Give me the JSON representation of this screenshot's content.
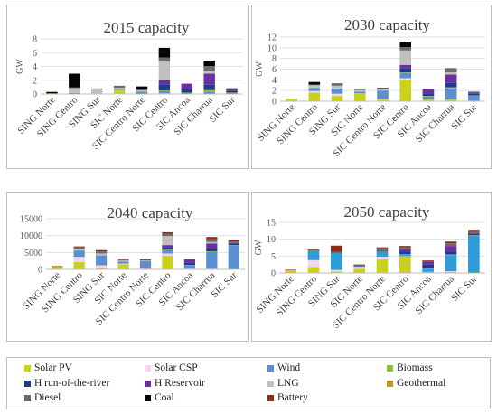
{
  "colors": {
    "Solar PV": "#c9d11d",
    "Solar CSP": "#f0d6f0",
    "Wind": "#5b8fcf",
    "Biomass": "#8cbf3f",
    "H run-of-the-river": "#1f3a93",
    "H Reservoir": "#6d2fa0",
    "LNG": "#c0c0c0",
    "Geothermal": "#b89c2e",
    "Diesel": "#6b6b6b",
    "Coal": "#050505",
    "Battery": "#8b2e14",
    "Wind2040": "#2e9cd8"
  },
  "legend": {
    "items": [
      "Solar PV",
      "Solar CSP",
      "Wind",
      "Biomass",
      "H run-of-the-river",
      "H Reservoir",
      "LNG",
      "Geothermal",
      "Diesel",
      "Coal",
      "Battery"
    ]
  },
  "chart_data": [
    {
      "type": "bar",
      "title": "2015 capacity",
      "ylabel": "GW",
      "ylim": [
        0,
        8
      ],
      "yticks": [
        "0",
        "2",
        "4",
        "6",
        "8"
      ],
      "categories": [
        "SING Norte",
        "SING Centro",
        "SING Sur",
        "SIC Norte",
        "SIC Centro Norte",
        "SIC Centro",
        "SIC Ancoa",
        "SIC Charrua",
        "SIC Sur"
      ],
      "series": [
        {
          "name": "Solar PV",
          "values": [
            0.05,
            0.05,
            0.0,
            0.5,
            0.05,
            0.1,
            0.05,
            0.05,
            0.0
          ]
        },
        {
          "name": "Solar CSP",
          "values": [
            0.0,
            0.0,
            0.0,
            0.0,
            0.0,
            0.0,
            0.0,
            0.0,
            0.0
          ]
        },
        {
          "name": "Wind",
          "values": [
            0.05,
            0.1,
            0.0,
            0.1,
            0.3,
            0.3,
            0.1,
            0.3,
            0.1
          ]
        },
        {
          "name": "Biomass",
          "values": [
            0.0,
            0.0,
            0.0,
            0.0,
            0.0,
            0.1,
            0.05,
            0.2,
            0.1
          ]
        },
        {
          "name": "H run-of-the-river",
          "values": [
            0.0,
            0.0,
            0.0,
            0.0,
            0.0,
            0.9,
            0.5,
            0.8,
            0.3
          ]
        },
        {
          "name": "H Reservoir",
          "values": [
            0.0,
            0.0,
            0.0,
            0.0,
            0.0,
            0.6,
            0.8,
            1.6,
            0.2
          ]
        },
        {
          "name": "LNG",
          "values": [
            0.0,
            0.7,
            0.7,
            0.3,
            0.15,
            2.7,
            0.0,
            0.4,
            0.0
          ]
        },
        {
          "name": "Geothermal",
          "values": [
            0.0,
            0.0,
            0.0,
            0.0,
            0.0,
            0.0,
            0.0,
            0.0,
            0.0
          ]
        },
        {
          "name": "Diesel",
          "values": [
            0.0,
            0.1,
            0.0,
            0.3,
            0.2,
            0.6,
            0.0,
            0.7,
            0.15
          ]
        },
        {
          "name": "Coal",
          "values": [
            0.2,
            2.0,
            0.1,
            0.0,
            0.4,
            1.4,
            0.0,
            0.8,
            0.0
          ]
        },
        {
          "name": "Battery",
          "values": [
            0.0,
            0.0,
            0.0,
            0.0,
            0.0,
            0.0,
            0.0,
            0.0,
            0.0
          ]
        }
      ]
    },
    {
      "type": "bar",
      "title": "2030 capacity",
      "ylabel": "GW",
      "ylim": [
        0,
        12
      ],
      "yticks": [
        "0",
        "2",
        "4",
        "6",
        "8",
        "10",
        "12"
      ],
      "categories": [
        "SING Norte",
        "SING Centro",
        "SING Sur",
        "SIC Norte",
        "SIC Centro Norte",
        "SIC Centro",
        "SIC Ancoa",
        "SIC Charrua",
        "SIC Sur"
      ],
      "series": [
        {
          "name": "Solar PV",
          "values": [
            0.4,
            1.6,
            1.0,
            1.5,
            0.3,
            4.0,
            0.3,
            0.3,
            0.1
          ]
        },
        {
          "name": "Solar CSP",
          "values": [
            0.0,
            0.3,
            0.4,
            0.0,
            0.1,
            0.3,
            0.0,
            0.0,
            0.0
          ]
        },
        {
          "name": "Wind",
          "values": [
            0.05,
            0.6,
            1.0,
            0.3,
            1.6,
            1.0,
            0.6,
            2.1,
            0.9
          ]
        },
        {
          "name": "Biomass",
          "values": [
            0.0,
            0.0,
            0.0,
            0.0,
            0.0,
            0.1,
            0.1,
            0.2,
            0.1
          ]
        },
        {
          "name": "H run-of-the-river",
          "values": [
            0.0,
            0.0,
            0.0,
            0.0,
            0.0,
            0.8,
            0.5,
            0.8,
            0.3
          ]
        },
        {
          "name": "H Reservoir",
          "values": [
            0.0,
            0.0,
            0.0,
            0.0,
            0.0,
            0.6,
            0.8,
            1.6,
            0.2
          ]
        },
        {
          "name": "LNG",
          "values": [
            0.0,
            0.5,
            0.5,
            0.3,
            0.2,
            2.7,
            0.0,
            0.4,
            0.0
          ]
        },
        {
          "name": "Geothermal",
          "values": [
            0.0,
            0.0,
            0.0,
            0.0,
            0.0,
            0.0,
            0.0,
            0.0,
            0.0
          ]
        },
        {
          "name": "Diesel",
          "values": [
            0.0,
            0.1,
            0.3,
            0.2,
            0.2,
            0.6,
            0.0,
            0.8,
            0.2
          ]
        },
        {
          "name": "Coal",
          "values": [
            0.0,
            0.5,
            0.1,
            0.0,
            0.1,
            0.9,
            0.0,
            0.0,
            0.0
          ]
        },
        {
          "name": "Battery",
          "values": [
            0.0,
            0.0,
            0.0,
            0.0,
            0.0,
            0.0,
            0.0,
            0.0,
            0.0
          ]
        }
      ]
    },
    {
      "type": "bar",
      "title": "2040 capacity",
      "ylabel": "",
      "ylim": [
        0,
        15000
      ],
      "yticks": [
        "0",
        "5000",
        "10000",
        "15000"
      ],
      "categories": [
        "SING Norte",
        "SING Centro",
        "SING Sur",
        "SIC Norte",
        "SIC Centro Norte",
        "SIC Centro",
        "SIC Ancoa",
        "SIC Charrua",
        "SIC Sur"
      ],
      "series": [
        {
          "name": "Solar PV",
          "values": [
            700,
            2200,
            400,
            1500,
            300,
            4000,
            300,
            300,
            100
          ]
        },
        {
          "name": "Solar CSP",
          "values": [
            100,
            1500,
            800,
            200,
            200,
            700,
            0,
            0,
            0
          ]
        },
        {
          "name": "Wind",
          "values": [
            50,
            1900,
            3000,
            600,
            1900,
            1000,
            900,
            4800,
            7000
          ]
        },
        {
          "name": "Biomass",
          "values": [
            0,
            0,
            0,
            0,
            0,
            100,
            100,
            200,
            100
          ]
        },
        {
          "name": "H run-of-the-river",
          "values": [
            0,
            0,
            0,
            0,
            0,
            800,
            600,
            800,
            400
          ]
        },
        {
          "name": "H Reservoir",
          "values": [
            0,
            0,
            0,
            0,
            0,
            600,
            800,
            1600,
            200
          ]
        },
        {
          "name": "LNG",
          "values": [
            0,
            500,
            500,
            300,
            200,
            2700,
            0,
            400,
            0
          ]
        },
        {
          "name": "Geothermal",
          "values": [
            0,
            0,
            0,
            0,
            0,
            0,
            0,
            0,
            0
          ]
        },
        {
          "name": "Diesel",
          "values": [
            0,
            400,
            600,
            300,
            200,
            600,
            0,
            800,
            400
          ]
        },
        {
          "name": "Coal",
          "values": [
            0,
            0,
            0,
            0,
            0,
            0,
            0,
            0,
            0
          ]
        },
        {
          "name": "Battery",
          "values": [
            100,
            300,
            400,
            200,
            200,
            500,
            300,
            700,
            500
          ]
        }
      ]
    },
    {
      "type": "bar",
      "title": "2050 capacity",
      "ylabel": "GW",
      "ylim": [
        0,
        15
      ],
      "yticks": [
        "0",
        "5",
        "10",
        "15"
      ],
      "categories": [
        "SING Norte",
        "SING Centro",
        "SING Sur",
        "SIC Norte",
        "SIC Centro Norte",
        "SIC Centro",
        "SIC Ancoa",
        "SIC Charrua",
        "SIC Sur"
      ],
      "series": [
        {
          "name": "Solar PV",
          "values": [
            0.6,
            1.8,
            0.4,
            1.2,
            4.0,
            5.0,
            0.3,
            0.3,
            0.1
          ]
        },
        {
          "name": "Solar CSP",
          "values": [
            0.2,
            2.0,
            0.5,
            0.6,
            0.8,
            0.0,
            0.0,
            0.2,
            0.0
          ]
        },
        {
          "name": "Wind",
          "values": [
            0.05,
            2.8,
            5.0,
            0.2,
            1.5,
            0.5,
            1.0,
            4.8,
            11.0
          ]
        },
        {
          "name": "Biomass",
          "values": [
            0.0,
            0.0,
            0.0,
            0.0,
            0.0,
            0.1,
            0.1,
            0.2,
            0.1
          ]
        },
        {
          "name": "H run-of-the-river",
          "values": [
            0.0,
            0.0,
            0.0,
            0.0,
            0.0,
            0.8,
            1.2,
            0.9,
            0.4
          ]
        },
        {
          "name": "H Reservoir",
          "values": [
            0.0,
            0.0,
            0.0,
            0.0,
            0.0,
            0.6,
            0.8,
            1.6,
            0.2
          ]
        },
        {
          "name": "LNG",
          "values": [
            0.0,
            0.0,
            0.0,
            0.0,
            0.0,
            0.0,
            0.0,
            0.0,
            0.0
          ]
        },
        {
          "name": "Geothermal",
          "values": [
            0.0,
            0.0,
            0.0,
            0.0,
            0.0,
            0.0,
            0.0,
            0.0,
            0.0
          ]
        },
        {
          "name": "Diesel",
          "values": [
            0.0,
            0.2,
            0.4,
            0.2,
            1.0,
            0.6,
            0.0,
            0.8,
            0.4
          ]
        },
        {
          "name": "Coal",
          "values": [
            0.0,
            0.0,
            0.0,
            0.0,
            0.0,
            0.0,
            0.0,
            0.0,
            0.0
          ]
        },
        {
          "name": "Battery",
          "values": [
            0.1,
            0.2,
            1.8,
            0.3,
            0.3,
            0.4,
            0.3,
            0.5,
            0.6
          ]
        }
      ]
    }
  ]
}
